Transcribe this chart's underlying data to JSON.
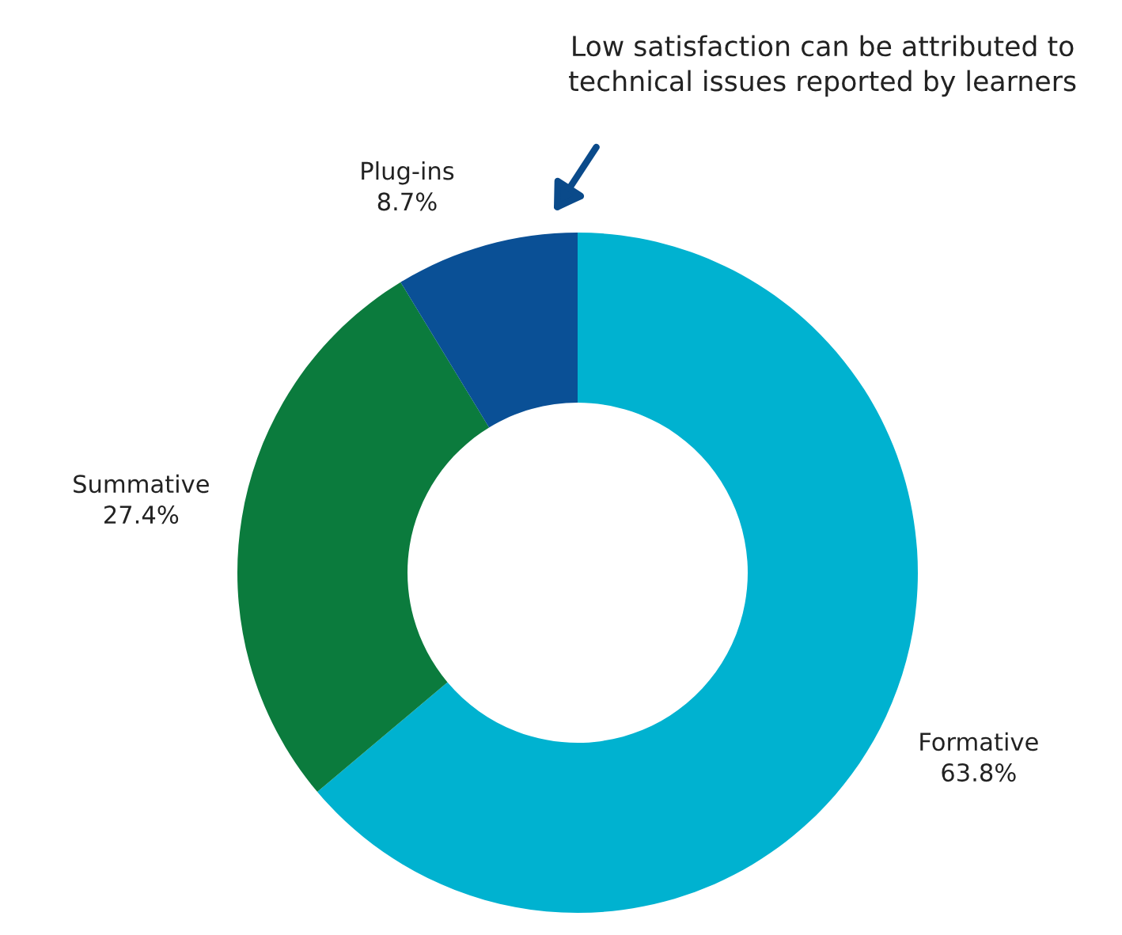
{
  "chart_data": {
    "type": "donut",
    "categories": [
      "Formative",
      "Summative",
      "Plug-ins"
    ],
    "values": [
      63.8,
      27.4,
      8.7
    ],
    "colors": [
      "#00b2d0",
      "#0b7b3d",
      "#0a5096"
    ],
    "value_labels": [
      "63.8%",
      "27.4%",
      "8.7%"
    ],
    "annotations": [
      "Low satisfaction can be attributed to\ntechnical issues reported by learners"
    ],
    "legend": false
  }
}
